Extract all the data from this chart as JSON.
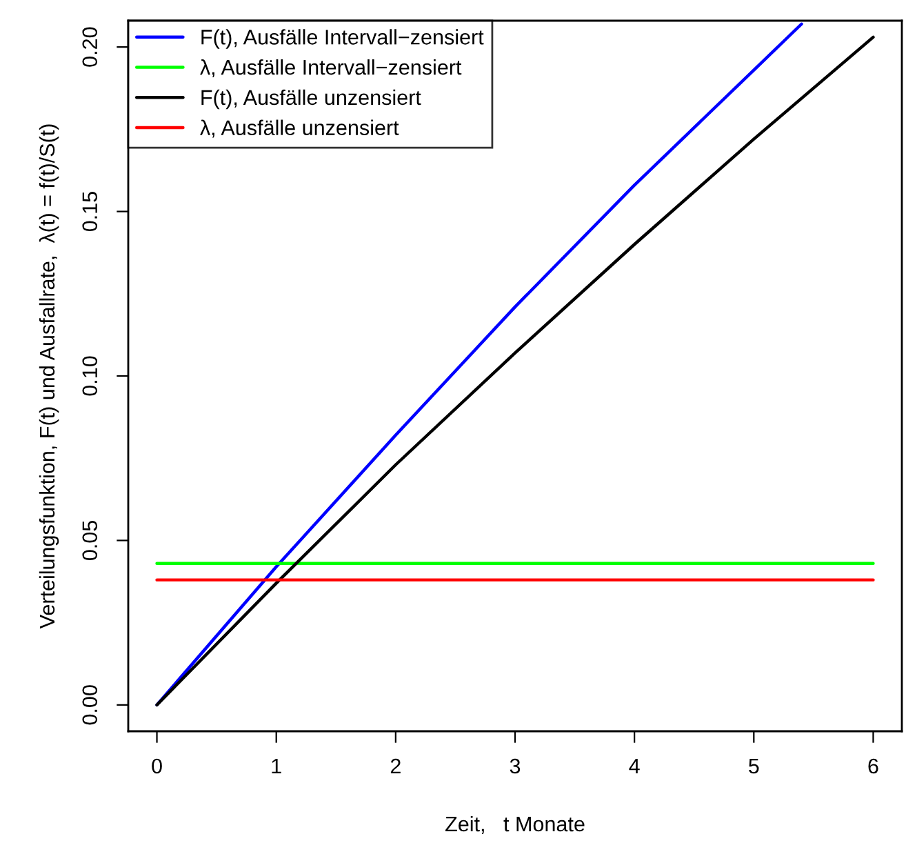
{
  "chart_data": {
    "type": "line",
    "xlabel": "Zeit,   t Monate",
    "ylabel": "Verteilungsfunktion, F(t) und Ausfallrate,  λ(t) = f(t)/S(t)",
    "xlim": [
      -0.24,
      6.24
    ],
    "ylim": [
      -0.008,
      0.208
    ],
    "xticks": [
      0,
      1,
      2,
      3,
      4,
      5,
      6
    ],
    "yticks": [
      {
        "value": 0,
        "label": "0.00"
      },
      {
        "value": 0.05,
        "label": "0.05"
      },
      {
        "value": 0.1,
        "label": "0.10"
      },
      {
        "value": 0.15,
        "label": "0.15"
      },
      {
        "value": 0.2,
        "label": "0.20"
      }
    ],
    "grid": false,
    "legend": "top left",
    "line_style": "solid",
    "marker": "none",
    "series": [
      {
        "name": "F(t), Ausfälle Intervall−zensiert",
        "color": "#0000ff",
        "x": [
          0,
          1,
          2,
          3,
          4,
          5,
          5.4
        ],
        "values": [
          0,
          0.042,
          0.082,
          0.121,
          0.158,
          0.193,
          0.207
        ]
      },
      {
        "name": "λ, Ausfälle Intervall−zensiert",
        "color": "#00ff00",
        "x": [
          0,
          6
        ],
        "values": [
          0.043,
          0.043
        ]
      },
      {
        "name": "F(t), Ausfälle unzensiert",
        "color": "#000000",
        "x": [
          0,
          1,
          2,
          3,
          4,
          5,
          6
        ],
        "values": [
          0,
          0.037,
          0.073,
          0.107,
          0.14,
          0.172,
          0.203
        ]
      },
      {
        "name": "λ, Ausfälle unzensiert",
        "color": "#ff0000",
        "x": [
          0,
          6
        ],
        "values": [
          0.038,
          0.038
        ]
      }
    ]
  }
}
